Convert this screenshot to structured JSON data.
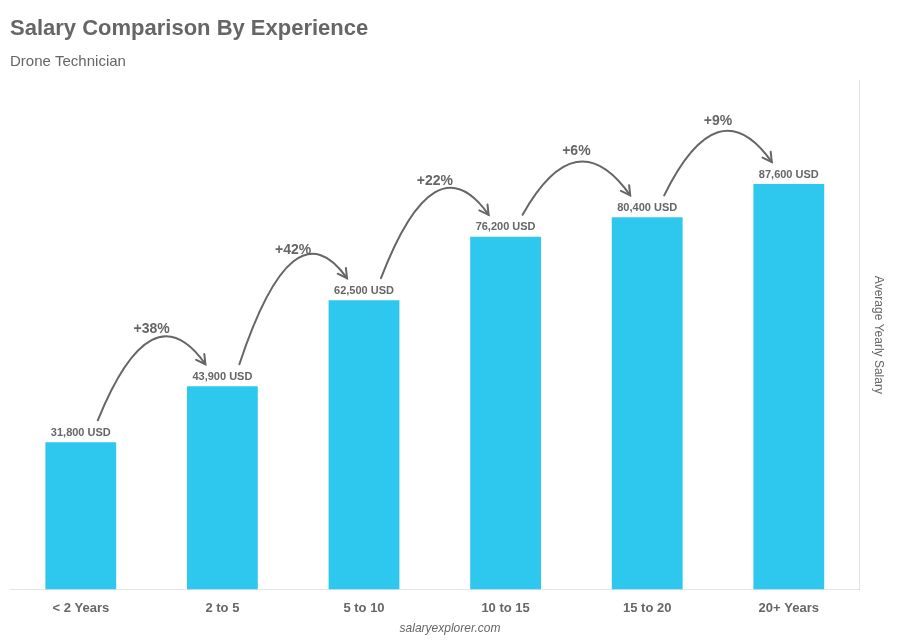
{
  "chart_data": {
    "type": "bar",
    "title": "Salary Comparison By Experience",
    "subtitle": "Drone Technician",
    "categories": [
      "< 2 Years",
      "2 to 5",
      "5 to 10",
      "10 to 15",
      "15 to 20",
      "20+ Years"
    ],
    "values": [
      31800,
      43900,
      62500,
      76200,
      80400,
      87600
    ],
    "value_labels": [
      "31,800 USD",
      "43,900 USD",
      "62,500 USD",
      "76,200 USD",
      "80,400 USD",
      "87,600 USD"
    ],
    "data_labels": true,
    "color": "#2ec8ee",
    "ylabel": "Average Yearly Salary",
    "ylim": [
      0,
      110000
    ],
    "grid": false,
    "tick_labels": "x",
    "annotations": [
      {
        "text": "+38%",
        "from": "< 2 Years",
        "to": "2 to 5"
      },
      {
        "text": "+42%",
        "from": "2 to 5",
        "to": "5 to 10"
      },
      {
        "text": "+22%",
        "from": "5 to 10",
        "to": "10 to 15"
      },
      {
        "text": "+6%",
        "from": "10 to 15",
        "to": "15 to 20"
      },
      {
        "text": "+9%",
        "from": "15 to 20",
        "to": "20+ Years"
      }
    ],
    "watermark": "salaryexplorer.com"
  }
}
